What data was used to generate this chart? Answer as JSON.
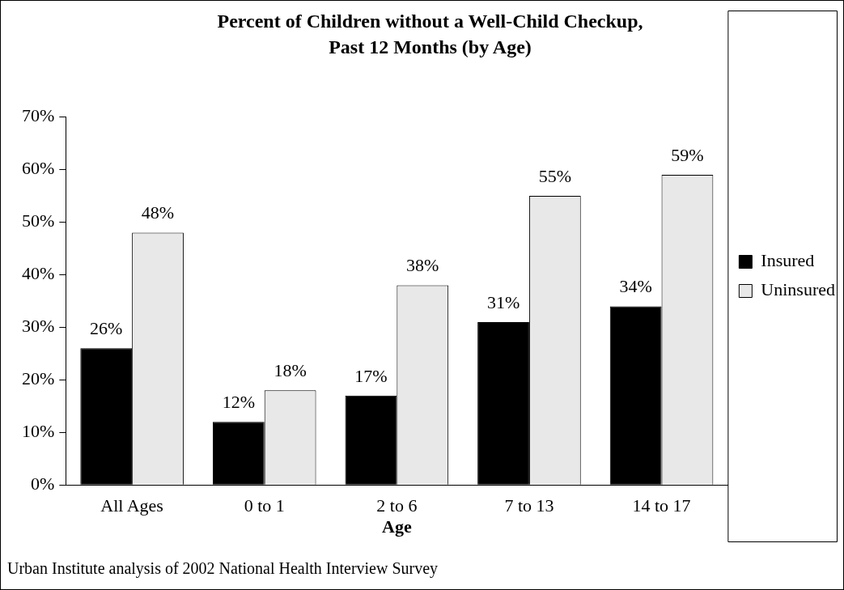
{
  "chart_data": {
    "type": "bar",
    "title": "Percent of Children without a Well-Child Checkup,",
    "subtitle": "Past 12 Months (by Age)",
    "xlabel": "Age",
    "categories": [
      "All Ages",
      "0 to 1",
      "2 to 6",
      "7 to 13",
      "14 to 17"
    ],
    "series": [
      {
        "name": "Insured",
        "color": "#000000",
        "values": [
          26,
          12,
          17,
          31,
          34
        ],
        "value_labels": [
          "26%",
          "12%",
          "17%",
          "31%",
          "34%"
        ]
      },
      {
        "name": "Uninsured",
        "color": "#e8e8e8",
        "values": [
          48,
          18,
          38,
          55,
          59
        ],
        "value_labels": [
          "48%",
          "18%",
          "38%",
          "55%",
          "59%"
        ]
      }
    ],
    "ylim": [
      0,
      70
    ],
    "yticks": [
      {
        "value": 0,
        "label": "0%"
      },
      {
        "value": 10,
        "label": "10%"
      },
      {
        "value": 20,
        "label": "20%"
      },
      {
        "value": 30,
        "label": "30%"
      },
      {
        "value": 40,
        "label": "40%"
      },
      {
        "value": 50,
        "label": "50%"
      },
      {
        "value": 60,
        "label": "60%"
      },
      {
        "value": 70,
        "label": "70%"
      }
    ],
    "grid": false,
    "legend": "right",
    "annotations": [
      "Urban Institute analysis of 2002 National Health Interview Survey"
    ]
  }
}
